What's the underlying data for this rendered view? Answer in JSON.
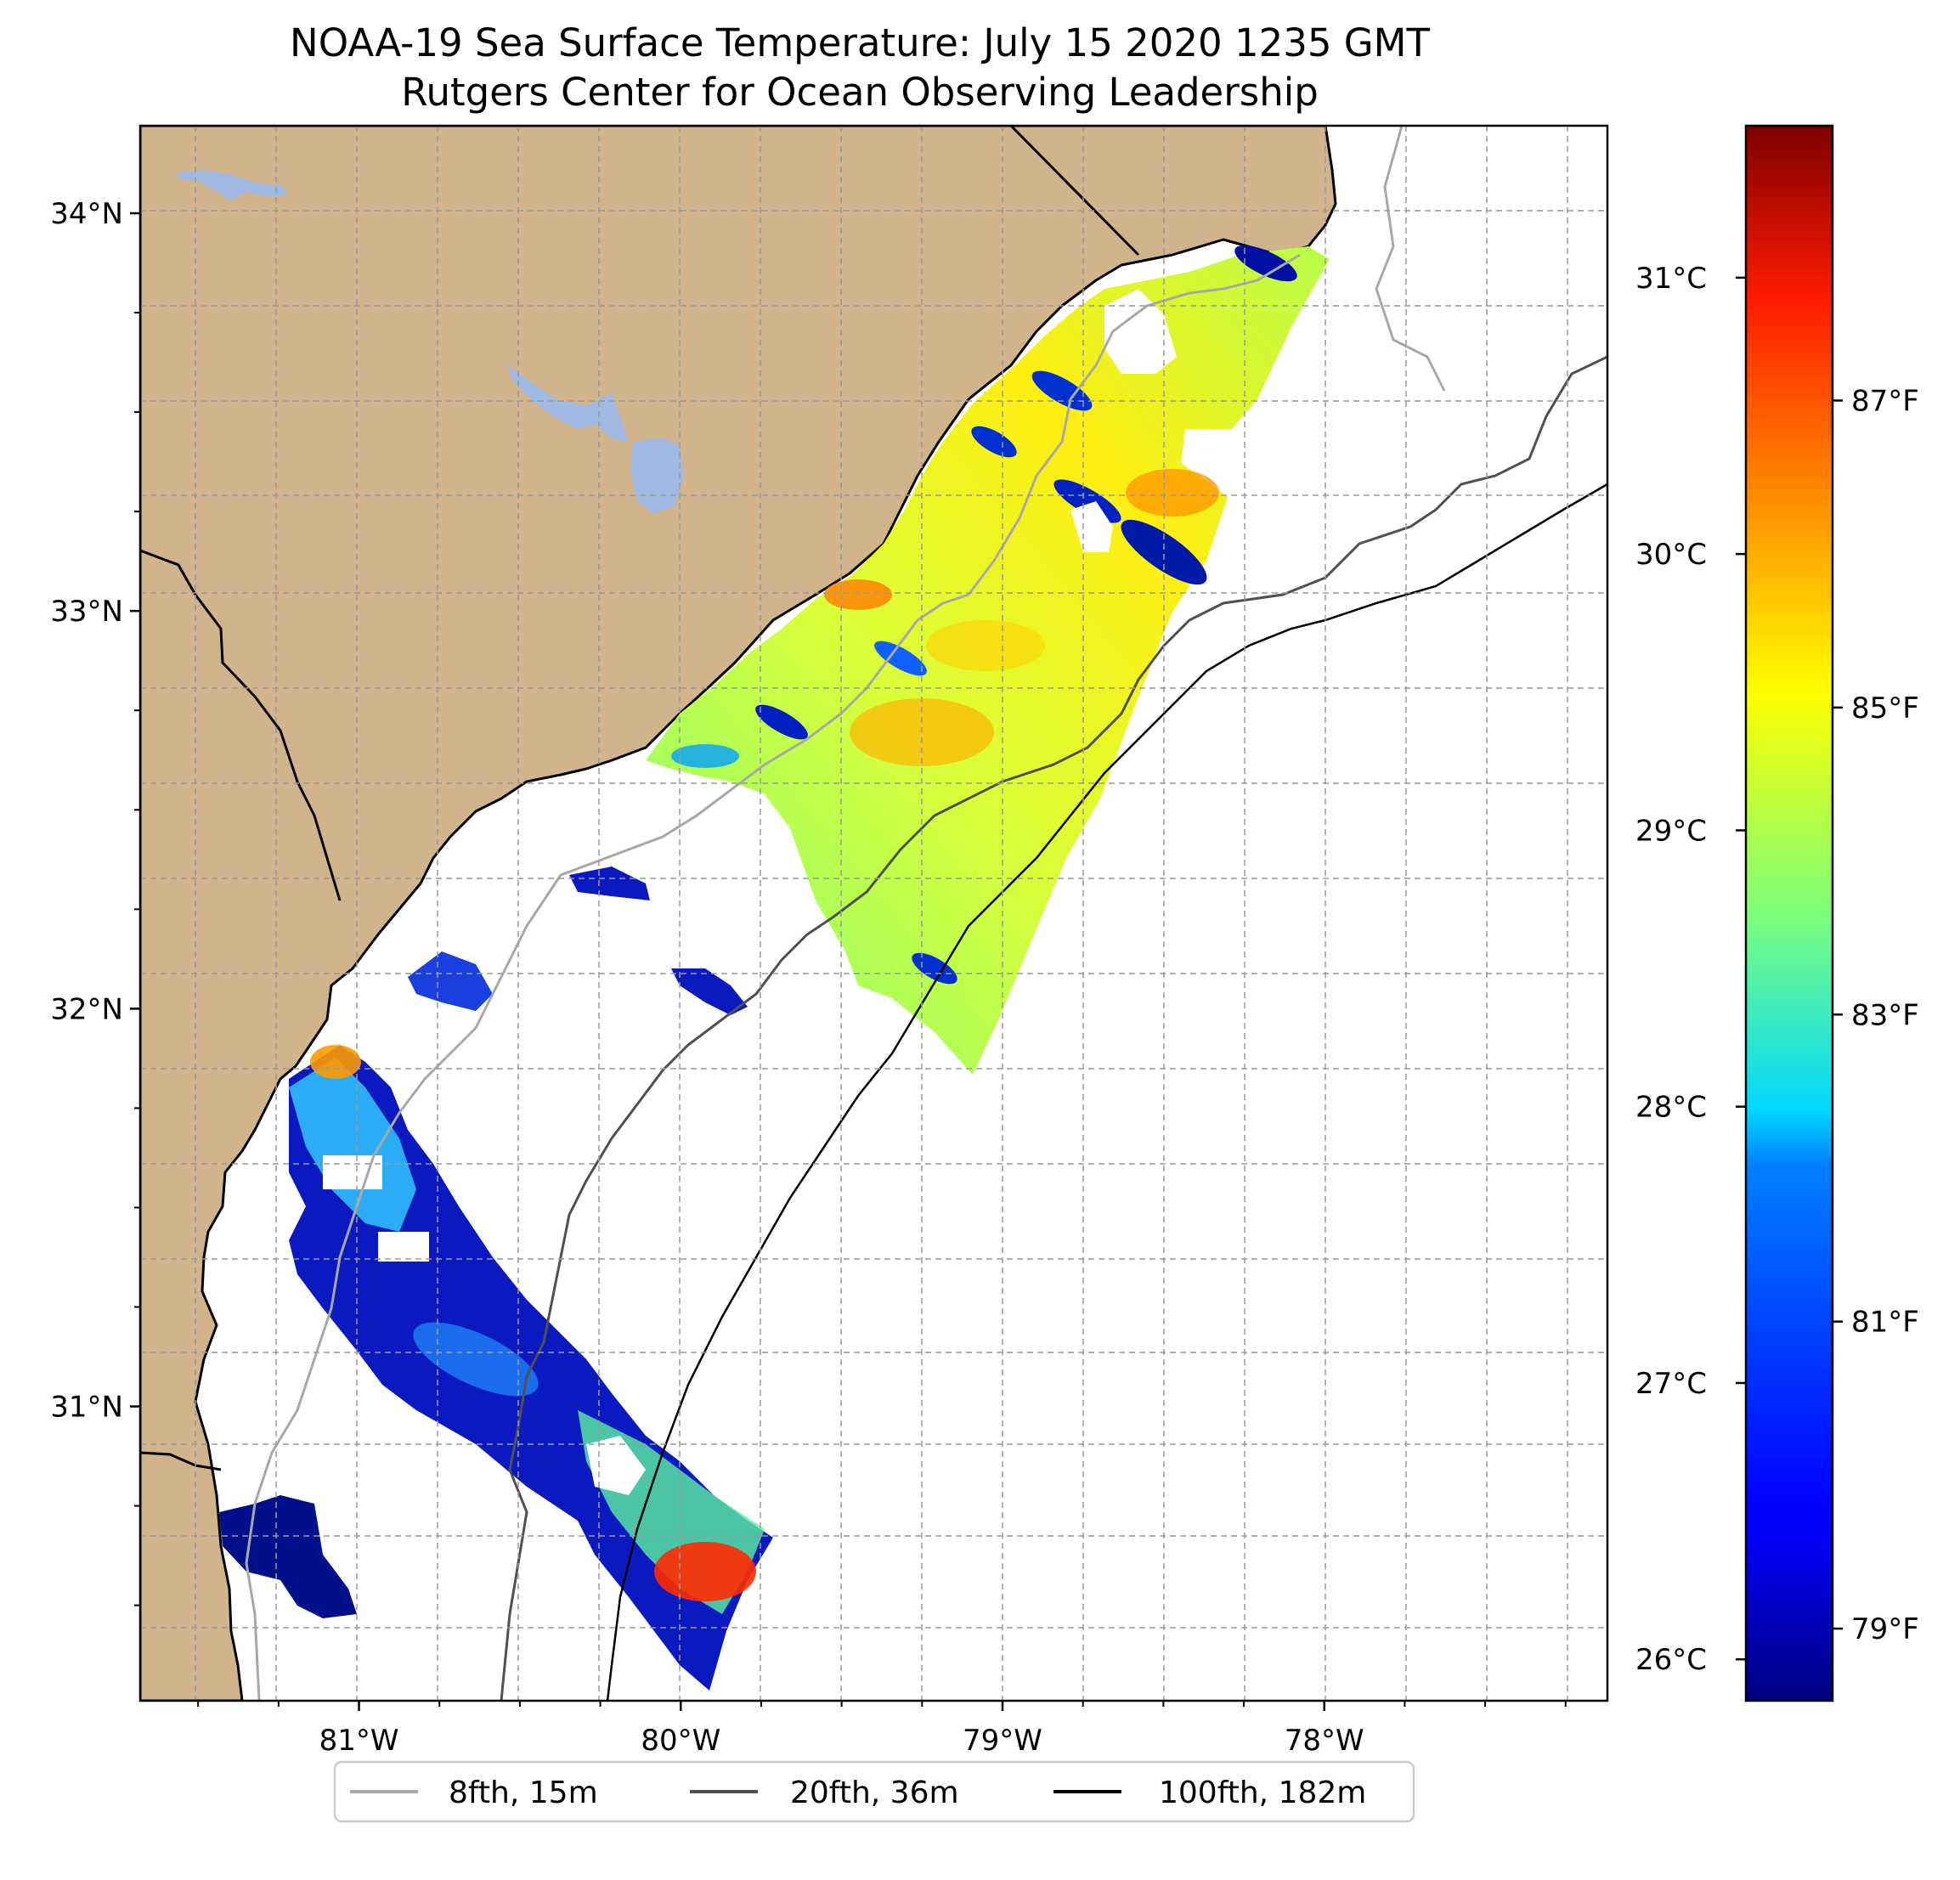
{
  "title": {
    "line1": "NOAA-19 Sea Surface Temperature: July 15 2020 1235 GMT",
    "line2": "Rutgers Center for Ocean Observing Leadership"
  },
  "map": {
    "lon_range": [
      -81.68,
      -77.12
    ],
    "lat_range": [
      30.26,
      34.22
    ],
    "lat_ticks": [
      {
        "value": 34,
        "label": "34°N"
      },
      {
        "value": 33,
        "label": "33°N"
      },
      {
        "value": 32,
        "label": "32°N"
      },
      {
        "value": 31,
        "label": "31°N"
      }
    ],
    "lon_ticks": [
      {
        "value": -81,
        "label": "81°W"
      },
      {
        "value": -80,
        "label": "80°W"
      },
      {
        "value": -79,
        "label": "79°W"
      },
      {
        "value": -78,
        "label": "78°W"
      }
    ],
    "gridlines": "dashed",
    "land_color": "#d2b48c",
    "lake_color": "#9fb9e3",
    "coastline_color": "#000000"
  },
  "colorbar": {
    "colormap": "jet",
    "celsius_ticks": [
      {
        "value": 31,
        "label": "31°C"
      },
      {
        "value": 30,
        "label": "30°C"
      },
      {
        "value": 29,
        "label": "29°C"
      },
      {
        "value": 28,
        "label": "28°C"
      },
      {
        "value": 27,
        "label": "27°C"
      },
      {
        "value": 26,
        "label": "26°C"
      }
    ],
    "fahrenheit_ticks": [
      {
        "value": 87,
        "label": "87°F"
      },
      {
        "value": 85,
        "label": "85°F"
      },
      {
        "value": 83,
        "label": "83°F"
      },
      {
        "value": 81,
        "label": "81°F"
      },
      {
        "value": 79,
        "label": "79°F"
      }
    ]
  },
  "legend": {
    "placement": "bottom-center",
    "items": [
      {
        "label": "8fth, 15m",
        "color": "#a8a8a8"
      },
      {
        "label": "20fth, 36m",
        "color": "#505050"
      },
      {
        "label": "100fth, 182m",
        "color": "#000000"
      }
    ]
  }
}
